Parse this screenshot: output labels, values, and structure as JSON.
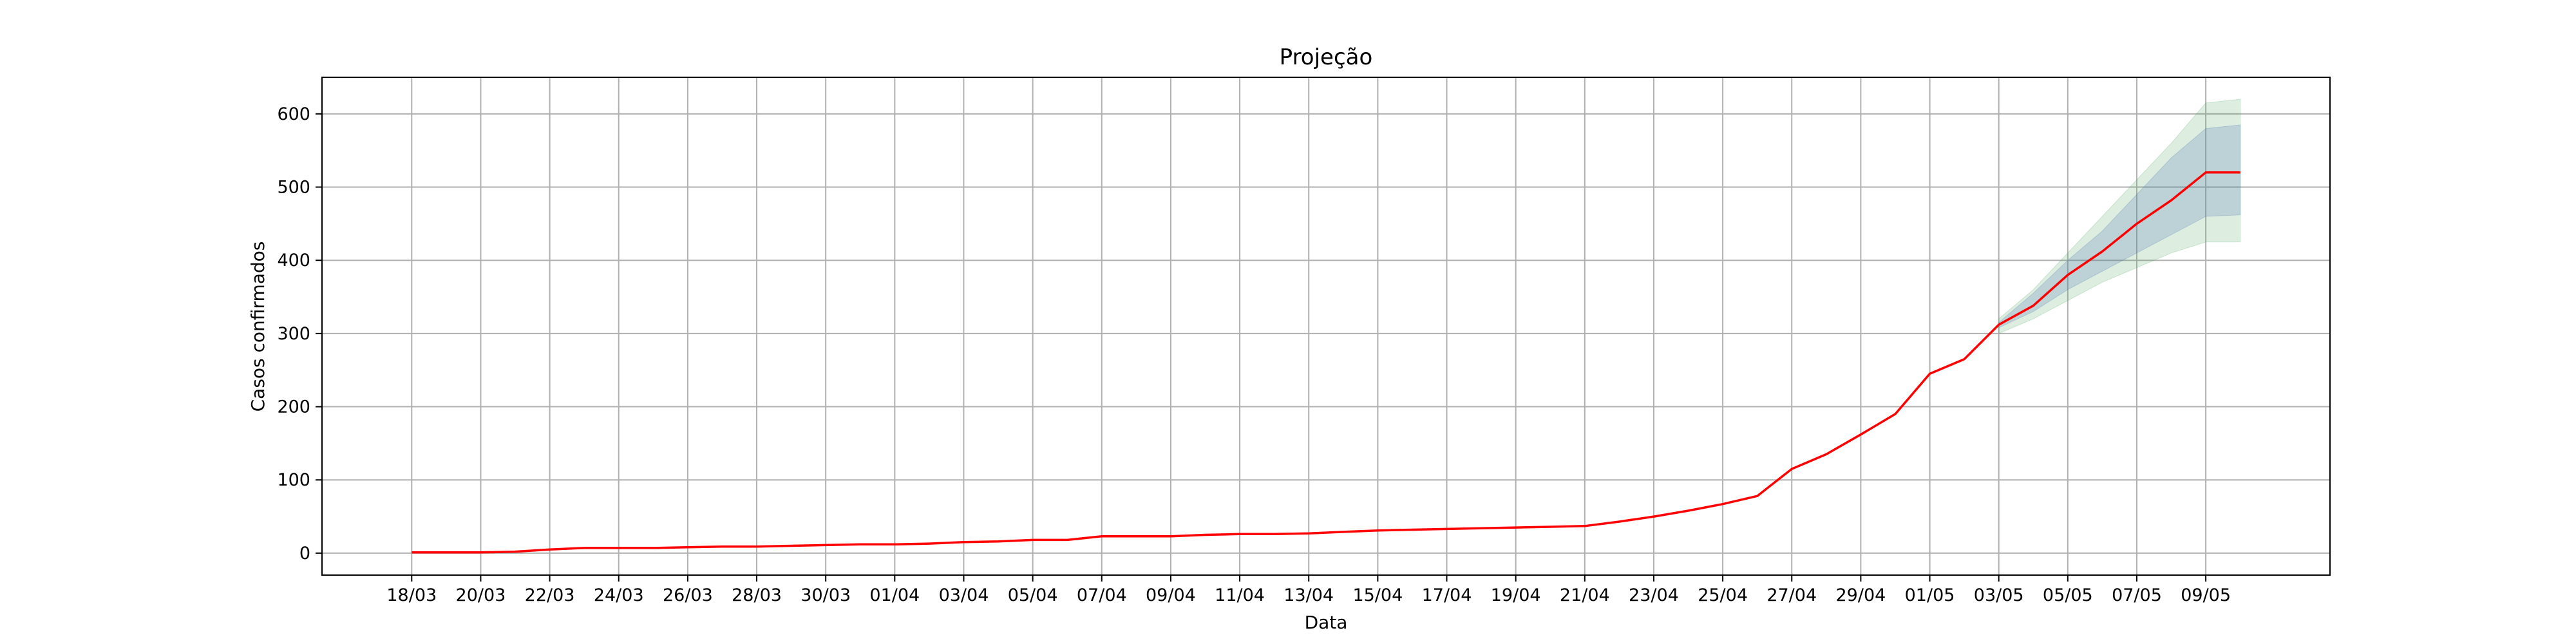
{
  "chart_data": {
    "type": "line",
    "title": "Projeção",
    "xlabel": "Data",
    "ylabel": "Casos confirmados",
    "grid": true,
    "ylim": [
      -30,
      650
    ],
    "yticks": [
      0,
      100,
      200,
      300,
      400,
      500,
      600
    ],
    "xtick_labels": [
      "18/03",
      "20/03",
      "22/03",
      "24/03",
      "26/03",
      "28/03",
      "30/03",
      "01/04",
      "03/04",
      "05/04",
      "07/04",
      "09/04",
      "11/04",
      "13/04",
      "15/04",
      "17/04",
      "19/04",
      "21/04",
      "23/04",
      "25/04",
      "27/04",
      "29/04",
      "01/05",
      "03/05",
      "05/05",
      "07/05",
      "09/05"
    ],
    "xlim": [
      -2.6,
      55.6
    ],
    "series": [
      {
        "name": "Casos confirmados",
        "color": "#ff0000",
        "x": [
          0,
          1,
          2,
          3,
          4,
          5,
          6,
          7,
          8,
          9,
          10,
          11,
          12,
          13,
          14,
          15,
          16,
          17,
          18,
          19,
          20,
          21,
          22,
          23,
          24,
          25,
          26,
          27,
          28,
          29,
          30,
          31,
          32,
          33,
          34,
          35,
          36,
          37,
          38,
          39,
          40,
          41,
          42,
          43,
          44,
          45,
          46,
          47,
          48,
          49,
          50,
          51,
          52,
          53
        ],
        "values": [
          1,
          1,
          1,
          2,
          5,
          7,
          7,
          7,
          8,
          9,
          9,
          10,
          11,
          12,
          12,
          13,
          15,
          16,
          18,
          18,
          23,
          23,
          23,
          25,
          26,
          26,
          27,
          29,
          31,
          32,
          33,
          34,
          35,
          36,
          37,
          43,
          50,
          58,
          67,
          78,
          115,
          135,
          162,
          190,
          245,
          265,
          312,
          338,
          380,
          412,
          450,
          482,
          520,
          520
        ]
      }
    ],
    "projection": {
      "x_start": 46,
      "x_end": 53,
      "inner_band": {
        "color": "#4c72b0",
        "lower": [
          308,
          330,
          360,
          385,
          410,
          435,
          460,
          462
        ],
        "upper": [
          315,
          355,
          400,
          440,
          490,
          540,
          580,
          585
        ]
      },
      "outer_band": {
        "color": "#55a868",
        "lower": [
          300,
          320,
          345,
          370,
          390,
          410,
          425,
          425
        ],
        "upper": [
          320,
          360,
          410,
          460,
          510,
          560,
          615,
          620
        ]
      }
    }
  }
}
